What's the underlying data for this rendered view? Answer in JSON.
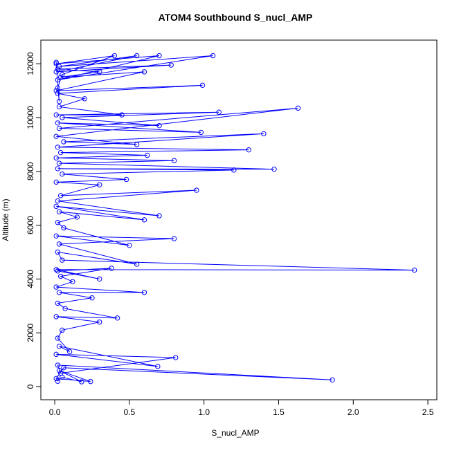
{
  "chart_data": {
    "type": "line",
    "title": "ATOM4 Southbound S_nucl_AMP",
    "x_label": "S_nucl_AMP",
    "y_label": "Altitude (m)",
    "color": "#0000ff",
    "markers": true,
    "grid": false,
    "xlim": [
      -0.093,
      2.56
    ],
    "ylim": [
      -488,
      12879
    ],
    "xticks": [
      {
        "value": 0,
        "label": "0.0"
      },
      {
        "value": 0.5,
        "label": "0.5"
      },
      {
        "value": 1,
        "label": "1.0"
      },
      {
        "value": 1.5,
        "label": "1.5"
      },
      {
        "value": 2,
        "label": "2.0"
      },
      {
        "value": 2.5,
        "label": "2.5"
      }
    ],
    "yticks": [
      0,
      2000,
      4000,
      6000,
      8000,
      10000,
      12000
    ],
    "x": [
      0.02,
      0.05,
      0.18,
      0.03,
      0.24,
      0.01,
      0.06,
      1.86,
      0.02,
      0.04,
      0.81,
      0.01,
      0.69,
      0.03,
      0.1,
      0.02,
      0.05,
      0.3,
      0.01,
      0.42,
      0.07,
      0.02,
      0.25,
      0.03,
      0.6,
      0.01,
      0.12,
      0.04,
      0.38,
      0.02,
      0.3,
      0.01,
      2.41,
      0.05,
      0.02,
      0.55,
      0.03,
      0.8,
      0.01,
      0.5,
      0.06,
      0.02,
      0.15,
      0.03,
      0.6,
      0.01,
      0.7,
      0.02,
      0.95,
      0.04,
      0.3,
      0.01,
      0.48,
      0.05,
      1.2,
      0.02,
      1.47,
      0.03,
      0.8,
      0.01,
      0.62,
      0.04,
      1.3,
      0.02,
      1.4,
      0.06,
      0.55,
      0.01,
      1.63,
      0.03,
      0.98,
      0.02,
      0.7,
      0.05,
      1.1,
      0.01,
      0.45,
      0.03,
      0.2,
      0.02,
      0.99,
      0.01,
      0.6,
      0.04,
      0.3,
      0.02,
      0.78,
      0.01,
      0.55,
      0.03,
      1.06,
      0.02,
      0.7,
      0.01,
      0.4,
      0.05,
      0.02,
      0.03,
      0.01
    ],
    "series": [
      {
        "name": "S_nucl_AMP",
        "color": "#0000ff",
        "values": [
          200,
          350,
          180,
          600,
          190,
          300,
          700,
          250,
          800,
          500,
          1080,
          1200,
          750,
          1500,
          1300,
          1800,
          2100,
          2400,
          2600,
          2550,
          2900,
          3100,
          3300,
          3500,
          3500,
          3700,
          3900,
          4100,
          4400,
          4300,
          4000,
          4350,
          4330,
          4700,
          5000,
          4550,
          5300,
          5500,
          5600,
          5250,
          5900,
          6100,
          6300,
          6500,
          6200,
          6700,
          6350,
          6900,
          7300,
          7100,
          7500,
          7600,
          7700,
          7900,
          8050,
          8100,
          8080,
          8300,
          8400,
          8500,
          8600,
          8700,
          8800,
          8900,
          9400,
          9100,
          9000,
          9300,
          10350,
          9600,
          9450,
          9800,
          9700,
          10000,
          10200,
          10100,
          10100,
          10400,
          10700,
          10900,
          11200,
          11000,
          11700,
          11500,
          11700,
          11800,
          11950,
          11700,
          12300,
          11900,
          12300,
          11400,
          12300,
          12000,
          12300,
          11600,
          11100,
          10600,
          12050
        ]
      }
    ]
  }
}
